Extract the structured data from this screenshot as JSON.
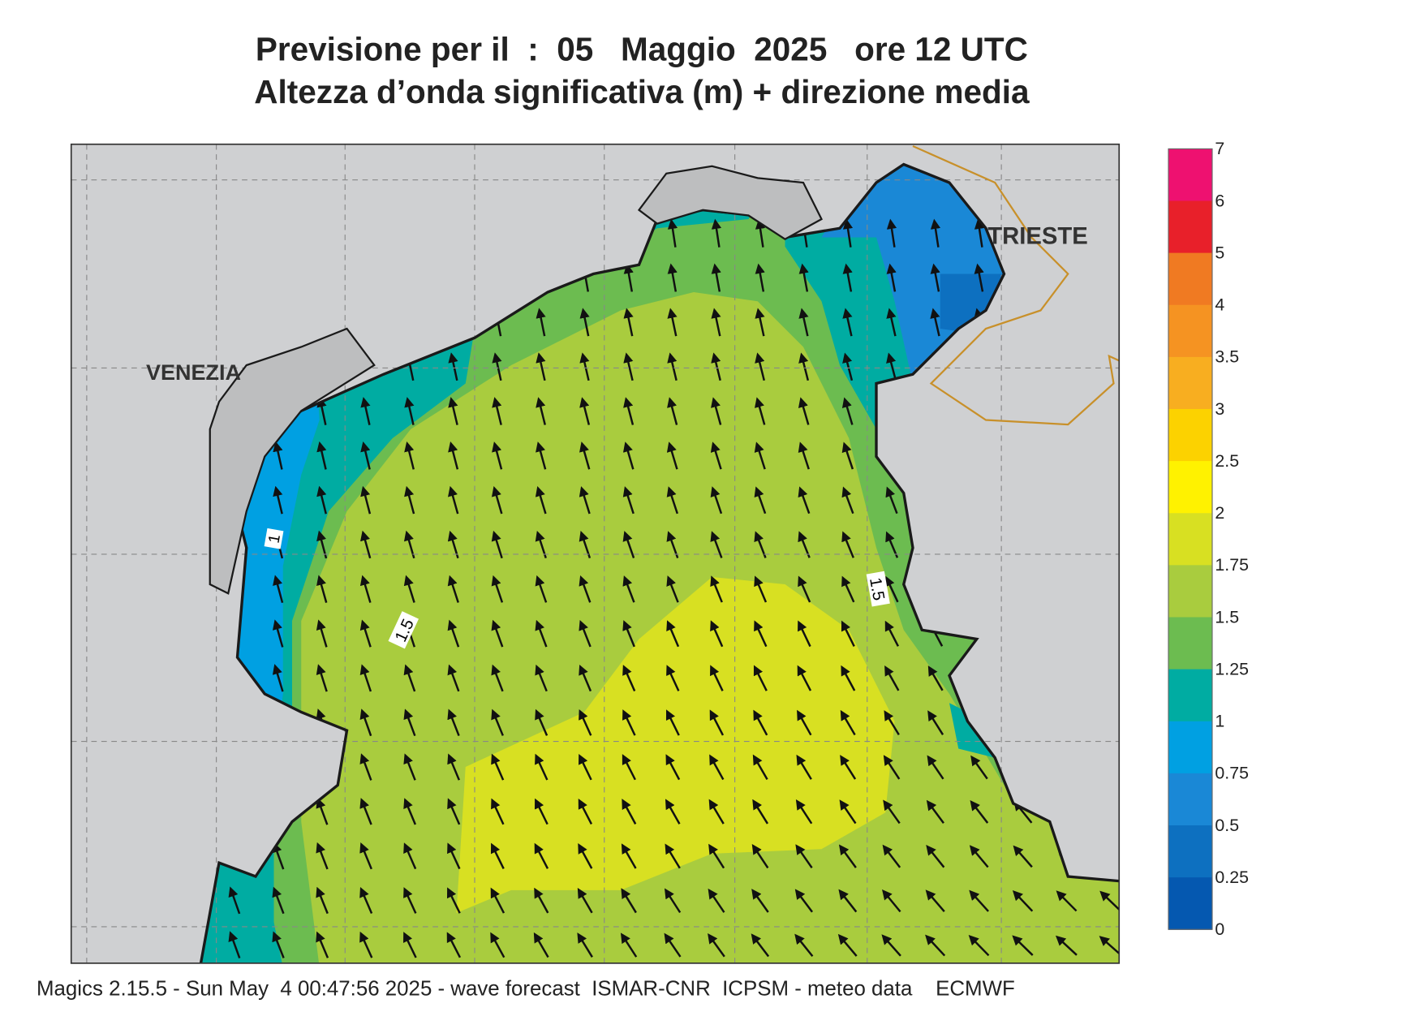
{
  "header": {
    "title": "Previsione per il  :  05   Maggio  2025   ore 12 UTC",
    "subtitle": "Altezza d’onda significativa (m) + direzione media"
  },
  "map": {
    "places": [
      "VENEZIA",
      "TRIESTE"
    ],
    "contour_labels": [
      "1",
      "1.5",
      "1.5"
    ]
  },
  "colorbar": {
    "labels": [
      "7",
      "6",
      "5",
      "4",
      "3.5",
      "3",
      "2.5",
      "2",
      "1.75",
      "1.5",
      "1.25",
      "1",
      "0.75",
      "0.5",
      "0.25",
      "0"
    ],
    "colors": [
      "#ee1170",
      "#e8202a",
      "#f07a22",
      "#f59322",
      "#f8ae20",
      "#fcd200",
      "#fff200",
      "#d8e022",
      "#a9cc3e",
      "#6cbc50",
      "#00aca2",
      "#00a0e2",
      "#1a88d6",
      "#0d70c0",
      "#0558b0"
    ]
  },
  "footer": "Magics 2.15.5 - Sun May  4 00:47:56 2025 - wave forecast  ISMAR-CNR  ICPSM - meteo data    ECMWF"
}
